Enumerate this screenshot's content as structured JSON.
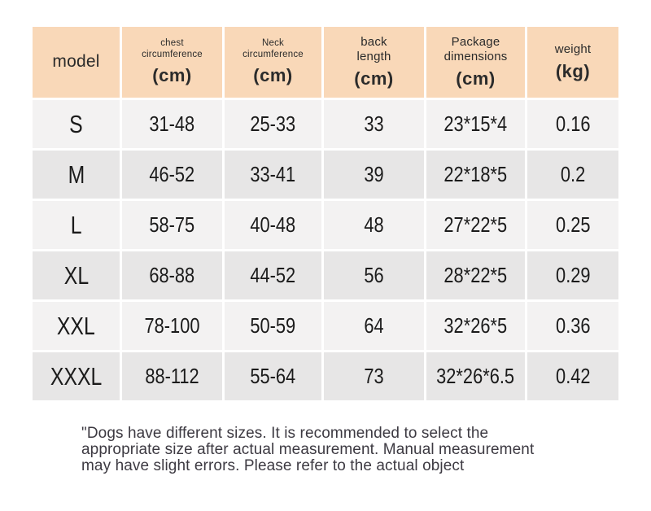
{
  "chart_data": {
    "type": "table",
    "title": "",
    "columns": [
      {
        "label": "model",
        "unit": ""
      },
      {
        "label": "chest\ncircumference",
        "unit": "(cm)"
      },
      {
        "label": "Neck\ncircumference",
        "unit": "(cm)"
      },
      {
        "label": "back\nlength",
        "unit": "(cm)"
      },
      {
        "label": "Package\ndimensions",
        "unit": "(cm)"
      },
      {
        "label": "weight",
        "unit": "(kg)"
      }
    ],
    "rows": [
      [
        "S",
        "31-48",
        "25-33",
        "33",
        "23*15*4",
        "0.16"
      ],
      [
        "M",
        "46-52",
        "33-41",
        "39",
        "22*18*5",
        "0.2"
      ],
      [
        "L",
        "58-75",
        "40-48",
        "48",
        "27*22*5",
        "0.25"
      ],
      [
        "XL",
        "68-88",
        "44-52",
        "56",
        "28*22*5",
        "0.29"
      ],
      [
        "XXL",
        "78-100",
        "50-59",
        "64",
        "32*26*5",
        "0.36"
      ],
      [
        "XXXL",
        "88-112",
        "55-64",
        "73",
        "32*26*6.5",
        "0.42"
      ]
    ]
  },
  "footer": {
    "lines": [
      "\"Dogs have different sizes. It is recommended to select the",
      "appropriate size after actual measurement. Manual measurement",
      "may have slight errors. Please refer to the actual object"
    ]
  },
  "colors": {
    "header_bg": "#f9d8b8",
    "row_light": "#f3f2f2",
    "row_dark": "#e7e6e6",
    "text": "#1b1b1b",
    "footer_text": "#3d3a42"
  }
}
